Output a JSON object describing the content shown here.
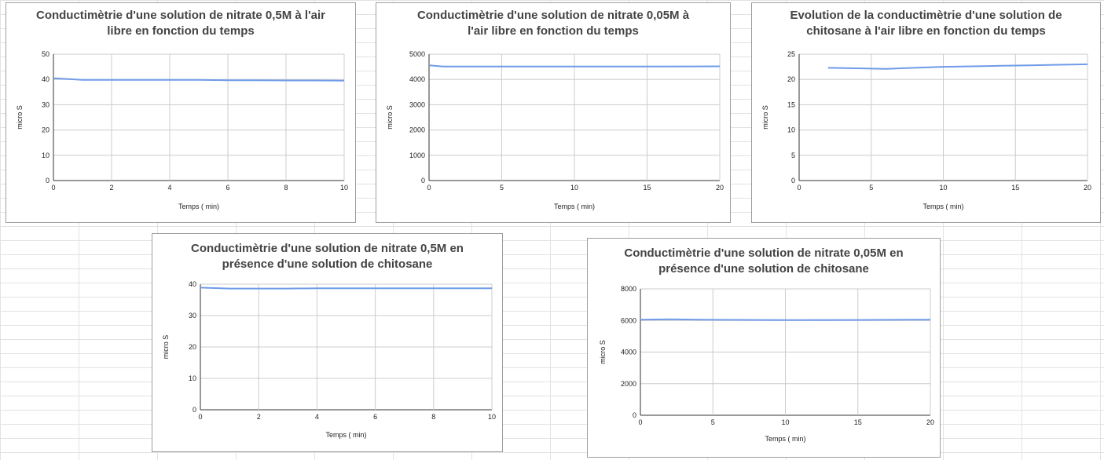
{
  "line_color": "#6f9be8",
  "grid_color": "#cccccc",
  "axis_color": "#333333",
  "chart_data": [
    {
      "type": "line",
      "title": [
        "Conductimètrie d'une solution de nitrate 0,5M à l'air",
        "libre en fonction du temps"
      ],
      "xlabel": "Temps ( min)",
      "ylabel": "micro S",
      "xlim": [
        0,
        10
      ],
      "ylim": [
        0,
        50
      ],
      "xticks": [
        0,
        2,
        4,
        6,
        8,
        10
      ],
      "yticks": [
        0,
        10,
        20,
        30,
        40,
        50
      ],
      "series": [
        {
          "x": [
            0,
            1,
            2,
            3,
            4,
            5,
            6,
            7,
            8,
            9,
            10
          ],
          "y": [
            40.5,
            39.8,
            39.8,
            39.8,
            39.8,
            39.8,
            39.7,
            39.7,
            39.6,
            39.6,
            39.5
          ]
        }
      ]
    },
    {
      "type": "line",
      "title": [
        "Conductimètrie d'une solution de nitrate 0,05M à",
        "l'air libre en fonction du temps"
      ],
      "xlabel": "Temps ( min)",
      "ylabel": "micro S",
      "xlim": [
        0,
        20
      ],
      "ylim": [
        0,
        5000
      ],
      "xticks": [
        0,
        5,
        10,
        15,
        20
      ],
      "yticks": [
        0,
        1000,
        2000,
        3000,
        4000,
        5000
      ],
      "series": [
        {
          "x": [
            0,
            1,
            2,
            5,
            10,
            15,
            20
          ],
          "y": [
            4560,
            4510,
            4510,
            4510,
            4510,
            4510,
            4520
          ]
        }
      ]
    },
    {
      "type": "line",
      "title": [
        "Evolution de la conductimètrie d'une solution de",
        "chitosane à l'air libre en fonction du temps"
      ],
      "xlabel": "Temps ( min)",
      "ylabel": "micro S",
      "xlim": [
        0,
        20
      ],
      "ylim": [
        0,
        25
      ],
      "xticks": [
        0,
        5,
        10,
        15,
        20
      ],
      "yticks": [
        0,
        5,
        10,
        15,
        20,
        25
      ],
      "series": [
        {
          "x": [
            2,
            4,
            6,
            8,
            10,
            12,
            14,
            16,
            18,
            20
          ],
          "y": [
            22.3,
            22.2,
            22.1,
            22.3,
            22.5,
            22.6,
            22.7,
            22.8,
            22.9,
            23.0
          ]
        }
      ]
    },
    {
      "type": "line",
      "title": [
        "Conductimètrie d'une solution de nitrate 0,5M en",
        "présence d'une solution de chitosane"
      ],
      "xlabel": "Temps ( min)",
      "ylabel": "micro S",
      "xlim": [
        0,
        10
      ],
      "ylim": [
        0,
        40
      ],
      "xticks": [
        0,
        2,
        4,
        6,
        8,
        10
      ],
      "yticks": [
        0,
        10,
        20,
        30,
        40
      ],
      "series": [
        {
          "x": [
            0,
            1,
            2,
            3,
            4,
            5,
            6,
            7,
            8,
            9,
            10
          ],
          "y": [
            38.9,
            38.6,
            38.6,
            38.6,
            38.7,
            38.7,
            38.7,
            38.7,
            38.7,
            38.7,
            38.7
          ]
        }
      ]
    },
    {
      "type": "line",
      "title": [
        "Conductimètrie d'une solution de nitrate 0,05M en",
        "présence d'une solution de chitosane"
      ],
      "xlabel": "Temps ( min)",
      "ylabel": "micro S",
      "xlim": [
        0,
        20
      ],
      "ylim": [
        0,
        8000
      ],
      "xticks": [
        0,
        5,
        10,
        15,
        20
      ],
      "yticks": [
        0,
        2000,
        4000,
        6000,
        8000
      ],
      "series": [
        {
          "x": [
            0,
            2,
            5,
            10,
            15,
            20
          ],
          "y": [
            6050,
            6070,
            6040,
            6020,
            6030,
            6050
          ]
        }
      ]
    }
  ]
}
